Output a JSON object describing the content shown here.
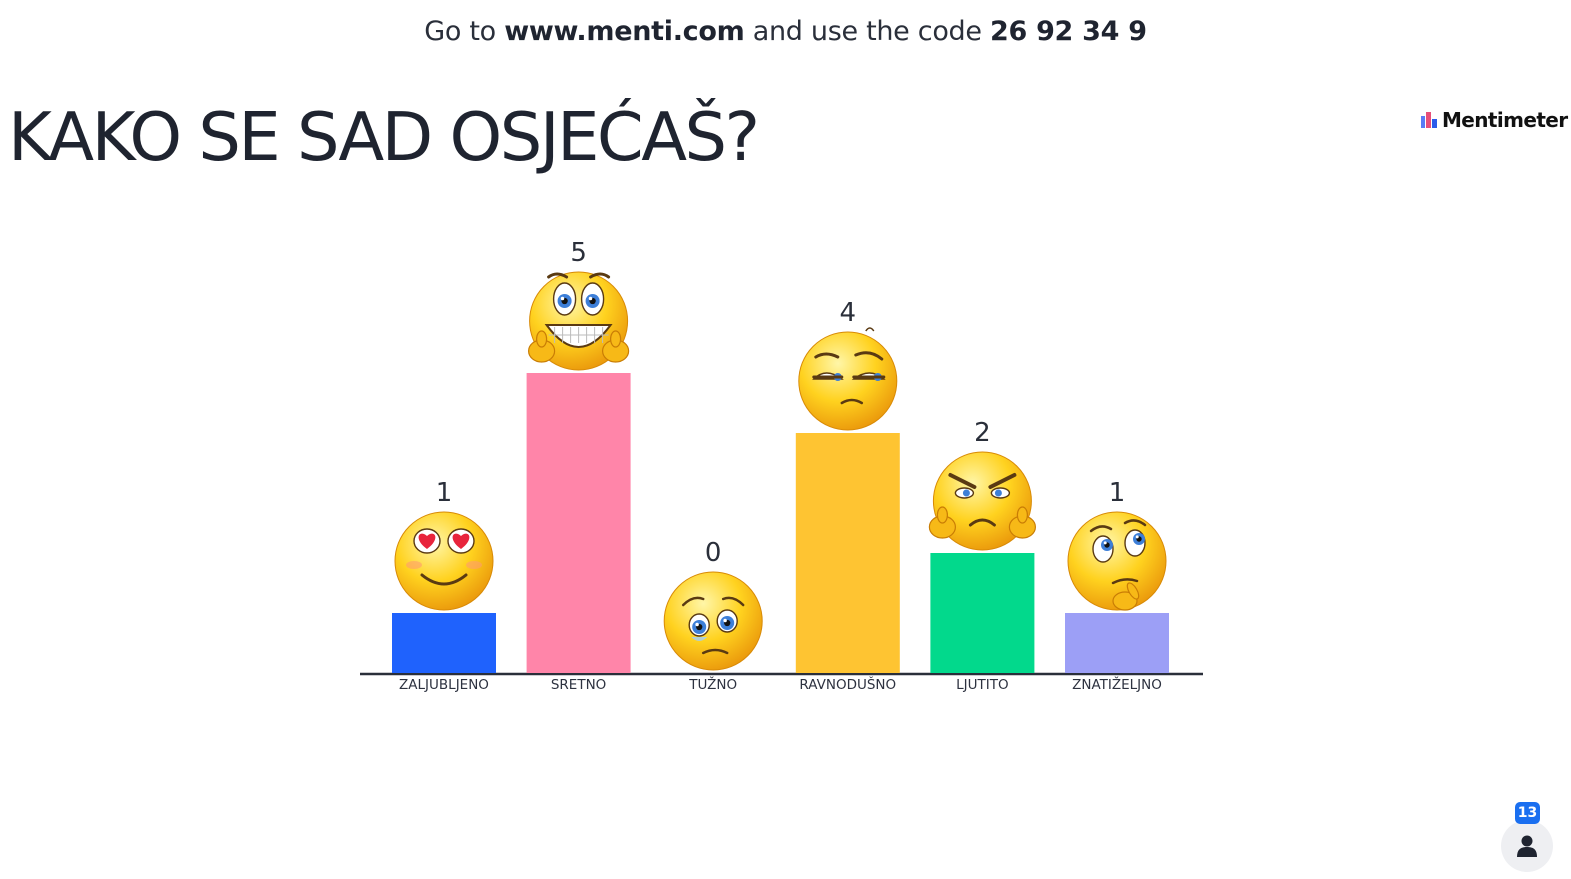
{
  "header": {
    "prefix": "Go to",
    "url": "www.menti.com",
    "middle": "and use the code",
    "code": "26 92 34 9"
  },
  "question": {
    "title": "KAKO SE SAD OSJEĆAŠ?"
  },
  "brand": {
    "name": "Mentimeter",
    "logo_icon": "mentimeter-logo-icon"
  },
  "participants": {
    "count": "13",
    "icon": "person-icon"
  },
  "chart_data": {
    "type": "bar",
    "categories": [
      "ZALJUBLJENO",
      "SRETNO",
      "TUŽNO",
      "RAVNODUŠNO",
      "LJUTITO",
      "ZNATIŽELJNO"
    ],
    "values": [
      1,
      5,
      0,
      4,
      2,
      1
    ],
    "colors": [
      "#1f62fd",
      "#ff85a9",
      "#ffffff",
      "#fec432",
      "#02d98c",
      "#9c9ff6"
    ],
    "emojis": [
      "heart-eyes-emoji",
      "grinning-thumbs-up-emoji",
      "sad-teary-emoji",
      "unamused-emoji",
      "angry-emoji",
      "thinking-emoji"
    ],
    "ylim": [
      0,
      5
    ],
    "grid": false,
    "legend": "none"
  }
}
